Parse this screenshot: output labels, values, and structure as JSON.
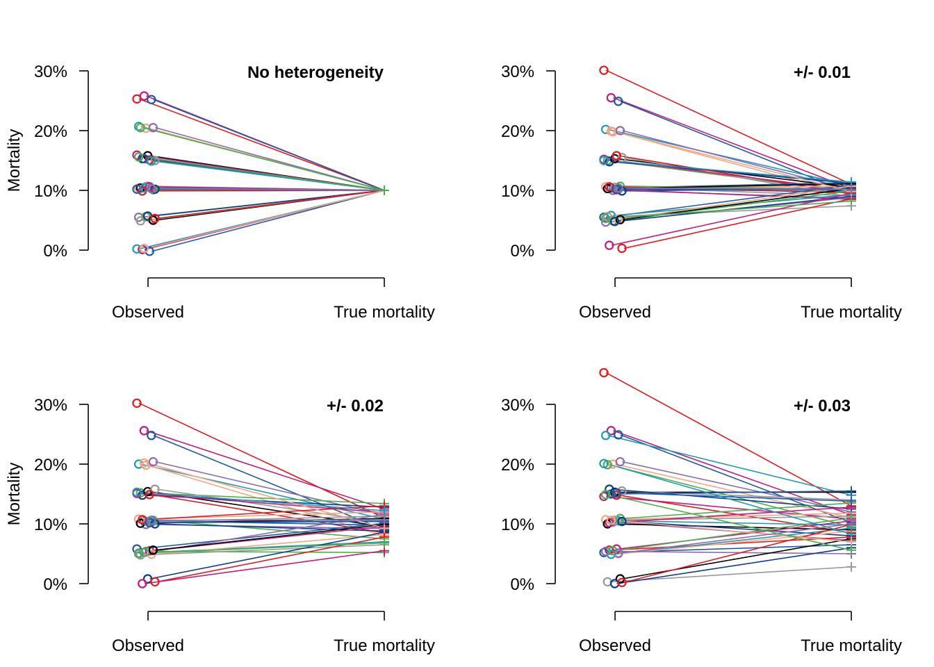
{
  "palette": [
    "#E41A1C",
    "#C51B7D",
    "#1F5AA6",
    "#1C9AB8",
    "#F4A582",
    "#8C6BB1",
    "#4DAF4A",
    "#000000",
    "#999999",
    "#0B3D91"
  ],
  "chart_data": [
    {
      "type": "line",
      "title": "No heterogeneity",
      "ylabel": "Mortality",
      "ylim": [
        0,
        30
      ],
      "yticks": [
        "0%",
        "10%",
        "20%",
        "30%"
      ],
      "categories": [
        "Observed",
        "True mortality"
      ],
      "observed": [
        25.3,
        25.8,
        25.2,
        20.7,
        20.4,
        20.5,
        20.5,
        15.8,
        15.0,
        15.3,
        15.1,
        15.9,
        15.3,
        14.9,
        10.4,
        10.6,
        10.1,
        10.4,
        10.7,
        10.2,
        9.9,
        10.6,
        10.2,
        10.4,
        5.2,
        5.5,
        5.6,
        5.0,
        4.9,
        5.7,
        5.3,
        0.1,
        -0.2,
        0.2,
        0.3,
        10.3,
        15.6
      ],
      "true": [
        10,
        10,
        10,
        10,
        10,
        10,
        10,
        10,
        10,
        10,
        10,
        10,
        10,
        10,
        10,
        10,
        10,
        10,
        10,
        10,
        10,
        10,
        10,
        10,
        10,
        10,
        10,
        10,
        10,
        10,
        10,
        10,
        10,
        10,
        10,
        10,
        10
      ]
    },
    {
      "type": "line",
      "title": "+/- 0.01",
      "ylabel": "",
      "ylim": [
        0,
        30
      ],
      "yticks": [
        "0%",
        "10%",
        "20%",
        "30%"
      ],
      "categories": [
        "Observed",
        "True mortality"
      ],
      "observed": [
        30.1,
        25.5,
        24.9,
        20.2,
        19.8,
        20.0,
        15.0,
        15.3,
        15.5,
        14.8,
        15.8,
        15.2,
        10.4,
        10.2,
        10.6,
        10.0,
        10.7,
        10.3,
        10.5,
        9.9,
        10.6,
        10.1,
        5.5,
        5.8,
        5.2,
        4.7,
        4.9,
        5.1,
        5.6,
        4.8,
        0.3,
        0.8,
        10.2,
        15.0,
        19.9,
        10.4,
        5.3
      ],
      "true": [
        11.0,
        10.3,
        9.5,
        10.8,
        9.2,
        10.1,
        9.7,
        10.5,
        8.9,
        11.2,
        9.4,
        10.0,
        11.3,
        9.8,
        10.6,
        8.7,
        10.2,
        11.1,
        9.1,
        10.4,
        9.6,
        8.5,
        10.9,
        9.3,
        10.7,
        8.8,
        9.9,
        10.3,
        7.4,
        9.0,
        8.6,
        9.5,
        10.1,
        11.4,
        9.8,
        10.2,
        8.2
      ]
    },
    {
      "type": "line",
      "title": "+/- 0.02",
      "ylabel": "Mortality",
      "ylim": [
        0,
        30
      ],
      "yticks": [
        "0%",
        "10%",
        "20%",
        "30%"
      ],
      "categories": [
        "Observed",
        "True mortality"
      ],
      "observed": [
        30.2,
        25.6,
        24.8,
        20.0,
        19.8,
        20.4,
        15.2,
        15.4,
        15.8,
        14.8,
        14.9,
        15.1,
        10.5,
        10.3,
        10.8,
        9.9,
        10.6,
        10.1,
        10.4,
        10.0,
        10.7,
        5.5,
        5.8,
        5.2,
        4.9,
        5.0,
        5.4,
        5.6,
        4.8,
        0.8,
        0.3,
        0.0,
        10.2,
        15.3,
        20.2,
        10.6,
        5.1
      ],
      "true": [
        11.0,
        12.5,
        9.0,
        10.8,
        8.0,
        11.5,
        13.4,
        9.5,
        10.2,
        12.8,
        8.5,
        11.9,
        9.8,
        10.5,
        12.0,
        9.2,
        7.5,
        10.9,
        11.3,
        8.8,
        13.0,
        9.6,
        10.1,
        7.0,
        8.2,
        11.6,
        5.2,
        9.9,
        6.5,
        8.6,
        7.8,
        5.5,
        10.4,
        12.2,
        9.3,
        10.7,
        6.8
      ]
    },
    {
      "type": "line",
      "title": "+/- 0.03",
      "ylabel": "",
      "ylim": [
        0,
        30
      ],
      "yticks": [
        "0%",
        "10%",
        "20%",
        "30%"
      ],
      "categories": [
        "Observed",
        "True mortality"
      ],
      "observed": [
        35.3,
        25.6,
        24.9,
        24.8,
        20.0,
        20.4,
        19.9,
        15.3,
        15.5,
        15.8,
        14.8,
        14.6,
        15.0,
        10.5,
        10.7,
        10.3,
        10.9,
        10.0,
        10.6,
        10.4,
        5.6,
        5.8,
        5.2,
        4.9,
        5.0,
        5.4,
        5.5,
        0.8,
        0.3,
        0.0,
        0.2,
        10.2,
        15.2,
        20.1,
        10.6,
        5.1,
        14.9
      ],
      "true": [
        13.0,
        11.5,
        10.2,
        14.8,
        11.0,
        12.0,
        9.5,
        15.3,
        14.0,
        12.5,
        8.5,
        10.8,
        15.5,
        9.8,
        11.8,
        7.2,
        13.5,
        9.0,
        11.3,
        8.0,
        7.8,
        10.5,
        6.5,
        9.3,
        8.8,
        5.0,
        11.0,
        7.5,
        2.8,
        6.0,
        9.9,
        12.8,
        13.8,
        8.3,
        7.0,
        10.0,
        5.6
      ]
    }
  ]
}
